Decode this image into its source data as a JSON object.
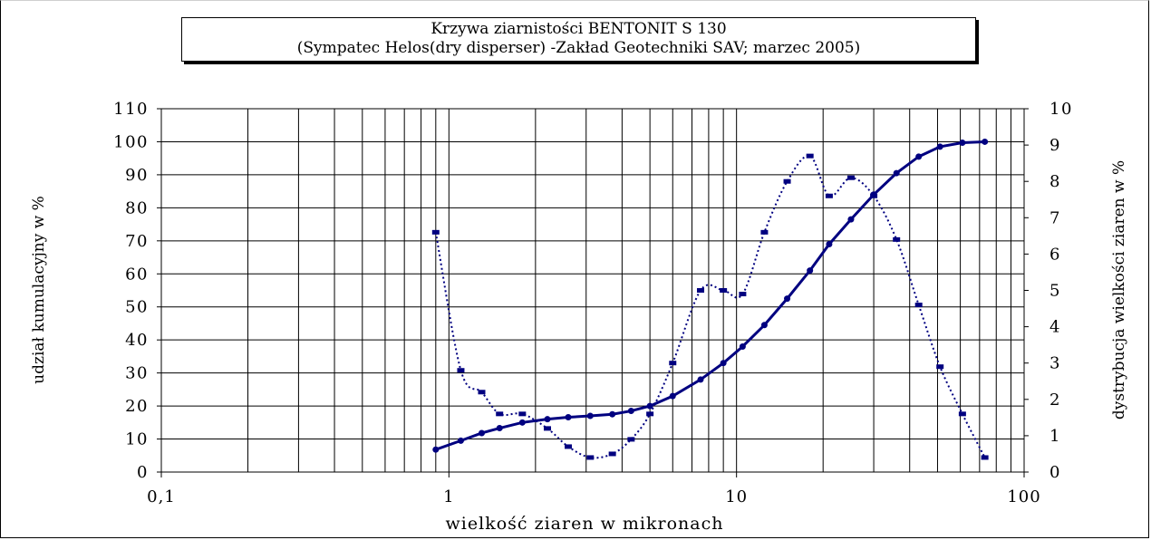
{
  "chart_data": {
    "type": "line",
    "title": "Krzywa ziarnistości BENTONIT S 130",
    "subtitle": "(Sympatec Helos(dry disperser) -Zakład Geotechniki SAV; marzec 2005)",
    "xlabel": "wielkość ziaren w mikronach",
    "ylabel": "udział kumulacyjny w %",
    "y2label": "dystrybucja wielkości ziaren w %",
    "x_scale": "log",
    "xlim": [
      0.1,
      100
    ],
    "ylim": [
      0,
      110
    ],
    "y2lim": [
      0,
      10
    ],
    "grid": true,
    "legend": "none",
    "x_ticks": [
      "0,1",
      "1",
      "10",
      "100"
    ],
    "y_ticks": [
      "0",
      "10",
      "20",
      "30",
      "40",
      "50",
      "60",
      "70",
      "80",
      "90",
      "100",
      "110"
    ],
    "y2_ticks": [
      "0",
      "1",
      "2",
      "3",
      "4",
      "5",
      "6",
      "7",
      "8",
      "9",
      "10"
    ],
    "series": [
      {
        "axis": "left",
        "style": "solid",
        "x": [
          0.9,
          1.1,
          1.3,
          1.5,
          1.8,
          2.2,
          2.6,
          3.1,
          3.7,
          4.3,
          5.0,
          6.0,
          7.5,
          9.0,
          10.5,
          12.5,
          15.0,
          18.0,
          21.0,
          25.0,
          30.0,
          36.0,
          43.0,
          51.0,
          61.0,
          73.0
        ],
        "y": [
          6.8,
          9.5,
          11.8,
          13.3,
          15.0,
          16.0,
          16.6,
          17.0,
          17.5,
          18.5,
          20.0,
          23.0,
          28.0,
          33.0,
          38.0,
          44.5,
          52.5,
          61.0,
          69.0,
          76.5,
          84.0,
          90.5,
          95.5,
          98.5,
          99.7,
          100.0
        ]
      },
      {
        "axis": "right",
        "style": "dotted",
        "x": [
          0.9,
          1.1,
          1.3,
          1.5,
          1.8,
          2.2,
          2.6,
          3.1,
          3.7,
          4.3,
          5.0,
          6.0,
          7.5,
          9.0,
          10.5,
          12.5,
          15.0,
          18.0,
          21.0,
          25.0,
          30.0,
          36.0,
          43.0,
          51.0,
          61.0,
          73.0
        ],
        "y": [
          6.6,
          2.8,
          2.2,
          1.6,
          1.6,
          1.2,
          0.7,
          0.4,
          0.5,
          0.9,
          1.6,
          3.0,
          5.0,
          5.0,
          4.9,
          6.6,
          8.0,
          8.7,
          7.6,
          8.1,
          7.6,
          6.4,
          4.6,
          2.9,
          1.6,
          0.4
        ]
      }
    ]
  }
}
